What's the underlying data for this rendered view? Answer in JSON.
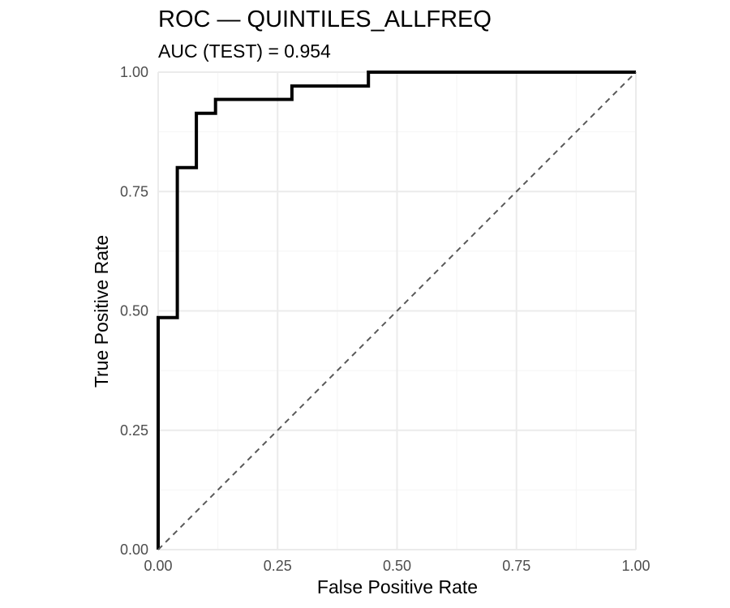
{
  "chart_data": {
    "type": "line",
    "title": "ROC — QUINTILES_ALLFREQ",
    "subtitle": "AUC (TEST) = 0.954",
    "xlabel": "False Positive Rate",
    "ylabel": "True Positive Rate",
    "xlim": [
      0,
      1
    ],
    "ylim": [
      0,
      1
    ],
    "x_ticks": [
      "0.00",
      "0.25",
      "0.50",
      "0.75",
      "1.00"
    ],
    "y_ticks": [
      "0.00",
      "0.25",
      "0.50",
      "0.75",
      "1.00"
    ],
    "grid": true,
    "legend": "none",
    "colors": {
      "roc": "#000000",
      "reference": "#595959",
      "grid_major": "#ebebeb",
      "grid_minor": "#f4f4f4"
    },
    "series": [
      {
        "role": "roc",
        "points": [
          [
            0,
            0
          ],
          [
            0,
            0.029
          ],
          [
            0,
            0.486
          ],
          [
            0.04,
            0.486
          ],
          [
            0.04,
            0.8
          ],
          [
            0.08,
            0.8
          ],
          [
            0.08,
            0.914
          ],
          [
            0.12,
            0.914
          ],
          [
            0.12,
            0.943
          ],
          [
            0.28,
            0.943
          ],
          [
            0.28,
            0.971
          ],
          [
            0.44,
            0.971
          ],
          [
            0.44,
            1.0
          ],
          [
            1.0,
            1.0
          ]
        ]
      },
      {
        "role": "reference",
        "style": "dashed",
        "points": [
          [
            0,
            0
          ],
          [
            1,
            1
          ]
        ]
      }
    ]
  }
}
